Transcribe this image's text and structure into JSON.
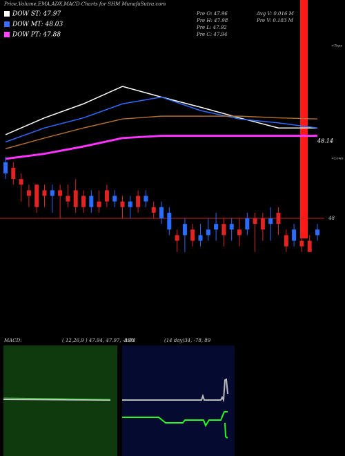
{
  "chart_data": [
    {
      "type": "candlestick",
      "title": "Price,Volume,EMA,ADX,MACD Charts for SHM MunafaSutra.com",
      "legend": [
        {
          "name": "DOW ST: 47.97",
          "color": "#ffffff"
        },
        {
          "name": "DOW MT: 48.03",
          "color": "#3b6cff"
        },
        {
          "name": "DOW PT: 47.88",
          "color": "#ff44ff"
        }
      ],
      "info": [
        "Pre  O: 47.96",
        "Avg V: 0.016  M",
        "Pre  H: 47.98",
        "Pre  V: 0.183  M",
        "Pre  L: 47.92",
        "Pre  C: 47.94"
      ],
      "top_label": "<Tops",
      "low_label": "<Lows",
      "last_price": 48.14,
      "hline": {
        "value": 48,
        "label": "48"
      },
      "ylim": [
        47.92,
        48.32
      ],
      "up_color": "#2a6cff",
      "down_color": "#e02424",
      "open": [
        48.08,
        48.09,
        48.07,
        48.05,
        48.06,
        48.05,
        48.04,
        48.05,
        48.04,
        48.05,
        48.04,
        48.02,
        48.03,
        48.05,
        48.03,
        48.03,
        48.02,
        48.04,
        48.03,
        48.02,
        48.0,
        47.98,
        47.97,
        47.97,
        47.98,
        47.96,
        47.97,
        47.98,
        47.99,
        47.98,
        47.98,
        47.98,
        48.0,
        48.0,
        47.99,
        48.01,
        47.97,
        47.96,
        47.96,
        47.96,
        47.97
      ],
      "close": [
        48.1,
        48.07,
        48.06,
        48.04,
        48.02,
        48.04,
        48.05,
        48.04,
        48.03,
        48.02,
        48.02,
        48.04,
        48.02,
        48.03,
        48.04,
        48.02,
        48.03,
        48.02,
        48.04,
        48.01,
        48.02,
        48.01,
        47.96,
        47.99,
        47.96,
        47.97,
        47.98,
        47.99,
        47.97,
        47.99,
        47.97,
        48.0,
        47.99,
        47.98,
        48.0,
        47.99,
        47.95,
        47.98,
        47.95,
        47.94,
        47.98
      ],
      "high": [
        48.11,
        48.1,
        48.08,
        48.06,
        48.06,
        48.06,
        48.06,
        48.06,
        48.06,
        48.07,
        48.05,
        48.05,
        48.05,
        48.06,
        48.05,
        48.04,
        48.04,
        48.05,
        48.05,
        48.03,
        48.03,
        48.02,
        47.98,
        48.0,
        47.99,
        47.99,
        48.0,
        48.01,
        48.0,
        48.0,
        48.0,
        48.01,
        48.01,
        48.01,
        48.02,
        48.02,
        47.98,
        47.99,
        47.98,
        47.97,
        47.99
      ],
      "low": [
        48.07,
        48.06,
        48.03,
        48.02,
        48.01,
        48.02,
        48.01,
        48.0,
        48.02,
        48.01,
        48.01,
        48.01,
        48.01,
        48.02,
        48.02,
        48.0,
        48.0,
        48.01,
        48.02,
        48.0,
        47.99,
        47.97,
        47.94,
        47.94,
        47.95,
        47.95,
        47.96,
        47.96,
        47.95,
        47.96,
        47.95,
        47.97,
        47.94,
        47.96,
        47.96,
        47.97,
        47.94,
        47.95,
        47.94,
        47.94,
        47.96
      ],
      "line_x": [
        0,
        5,
        10,
        15,
        20,
        25,
        30,
        35,
        40
      ],
      "lines": [
        {
          "color": "#ffffff",
          "values": [
            48.149,
            48.179,
            48.204,
            48.235,
            48.216,
            48.198,
            48.179,
            48.161,
            48.161
          ]
        },
        {
          "color": "#2f6bff",
          "values": [
            48.136,
            48.161,
            48.179,
            48.204,
            48.216,
            48.192,
            48.177,
            48.17,
            48.161
          ]
        },
        {
          "color": "#b07030",
          "values": [
            48.124,
            48.143,
            48.161,
            48.177,
            48.182,
            48.182,
            48.182,
            48.179,
            48.177
          ]
        },
        {
          "color": "#ff33ff",
          "values": [
            48.106,
            48.115,
            48.128,
            48.143,
            48.147,
            48.147,
            48.147,
            48.147,
            48.147
          ]
        }
      ]
    },
    {
      "type": "macd",
      "title": "MACD:",
      "params": "( 12,26,9 ) 47.94, 47.97, -0.03"
    },
    {
      "type": "adx",
      "title": "ADX",
      "params": "(14  day)34, -78, 89"
    }
  ]
}
